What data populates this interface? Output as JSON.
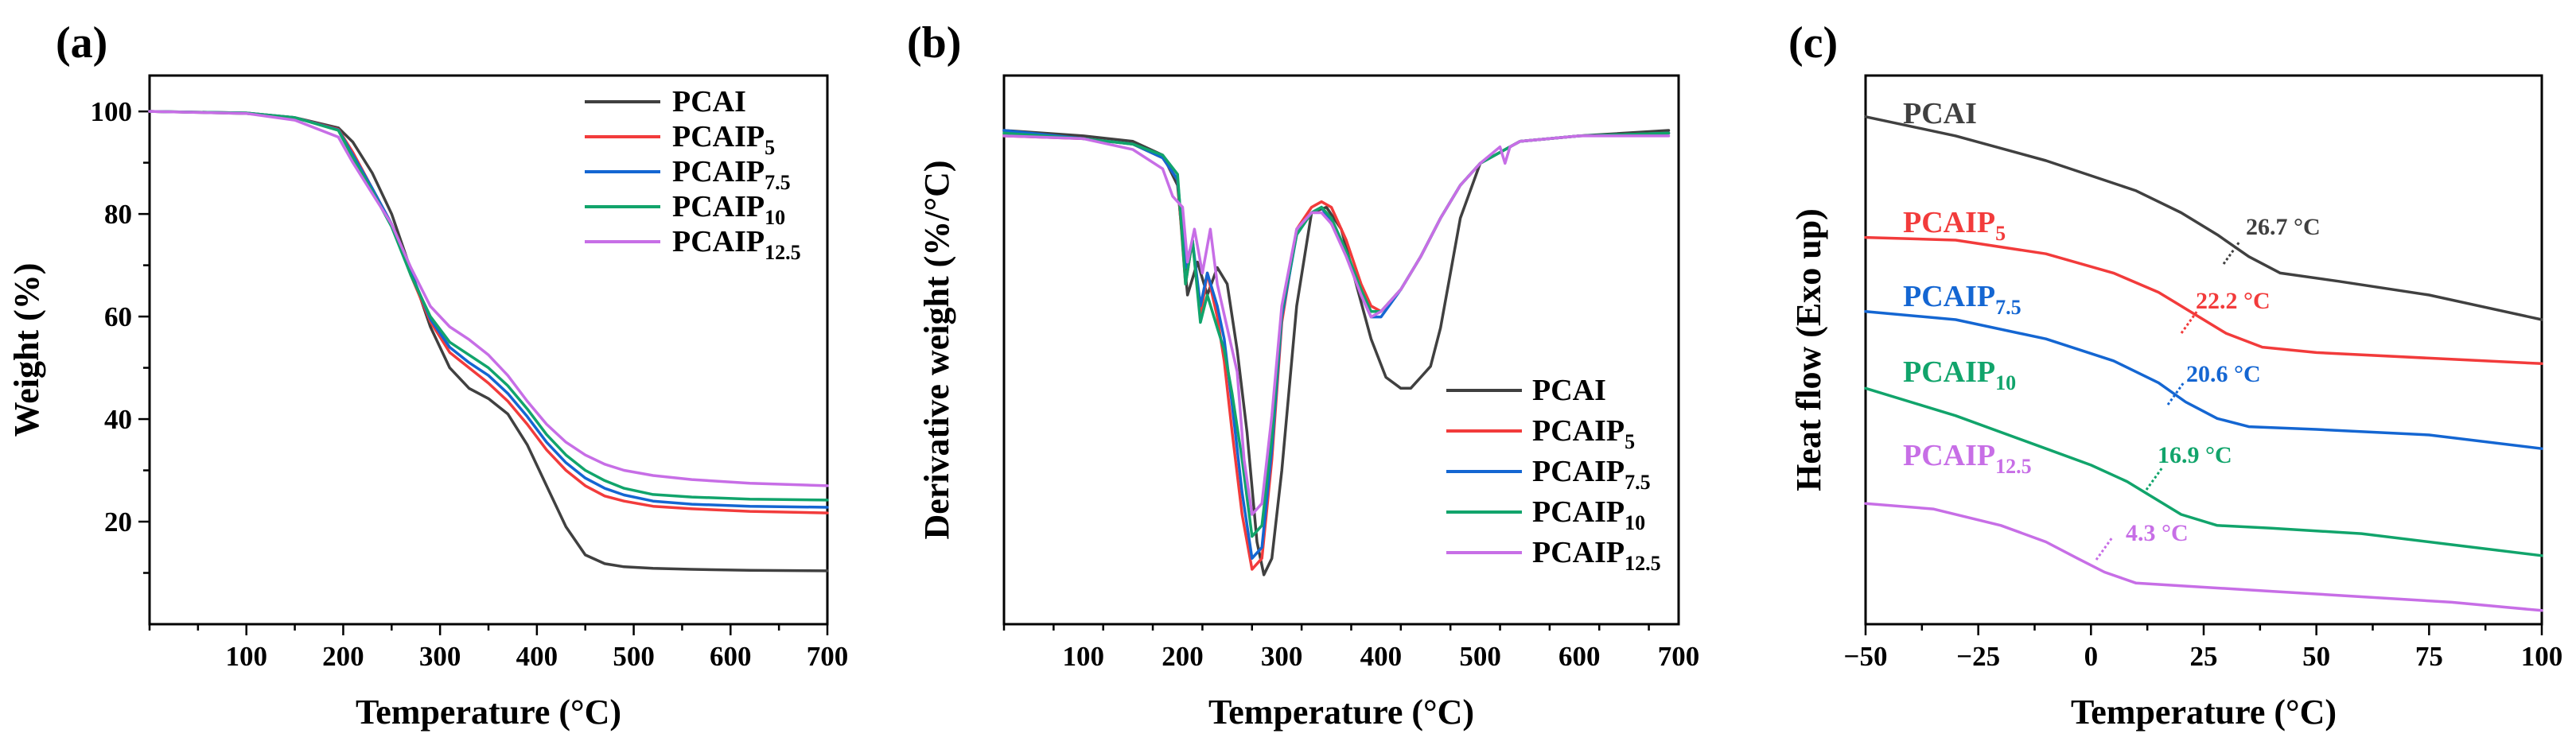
{
  "colors": {
    "PCAI": "#404040",
    "PCAIP5": "#f23b3b",
    "PCAIP7.5": "#1466d2",
    "PCAIP10": "#11a46b",
    "PCAIP12.5": "#c76ee6"
  },
  "chart_data": [
    {
      "type": "line",
      "title": "(a)",
      "xlabel": "Temperature (°C)",
      "ylabel": "Weight (%)",
      "xlim": [
        0,
        700
      ],
      "ylim": [
        0,
        107
      ],
      "xticks": [
        100,
        200,
        300,
        400,
        500,
        600,
        700
      ],
      "yticks": [
        20,
        40,
        60,
        80,
        100
      ],
      "grid": false,
      "legend_position": "top-right",
      "series": [
        {
          "name": "PCAI",
          "base": "PCAI",
          "subscript": "",
          "color": "#404040",
          "x": [
            0,
            100,
            150,
            195,
            210,
            230,
            250,
            270,
            290,
            310,
            330,
            350,
            370,
            390,
            410,
            430,
            450,
            470,
            490,
            520,
            560,
            620,
            700
          ],
          "y": [
            100,
            99.6,
            98.8,
            96.8,
            94,
            88,
            80,
            69,
            58,
            50,
            46,
            44,
            41,
            35,
            27,
            19,
            13.5,
            11.8,
            11.2,
            10.9,
            10.7,
            10.5,
            10.4
          ]
        },
        {
          "name": "PCAIP5",
          "base": "PCAIP",
          "subscript": "5",
          "color": "#f23b3b",
          "x": [
            0,
            100,
            150,
            195,
            210,
            230,
            250,
            270,
            290,
            310,
            330,
            350,
            370,
            390,
            410,
            430,
            450,
            470,
            490,
            520,
            560,
            620,
            700
          ],
          "y": [
            100,
            99.7,
            98.8,
            96.5,
            92,
            85,
            78,
            68,
            59,
            53,
            50,
            47,
            43.5,
            39,
            34,
            30,
            27,
            25,
            24,
            23,
            22.5,
            22,
            21.7
          ]
        },
        {
          "name": "PCAIP7.5",
          "base": "PCAIP",
          "subscript": "7.5",
          "color": "#1466d2",
          "x": [
            0,
            100,
            150,
            195,
            210,
            230,
            250,
            270,
            290,
            310,
            330,
            350,
            370,
            390,
            410,
            430,
            450,
            470,
            490,
            520,
            560,
            620,
            700
          ],
          "y": [
            100,
            99.7,
            98.8,
            96.4,
            91.5,
            85,
            78,
            68.5,
            59.5,
            54,
            51,
            48.5,
            45,
            40.5,
            35.5,
            31.5,
            28.5,
            26.5,
            25.2,
            24,
            23.4,
            23,
            22.8
          ]
        },
        {
          "name": "PCAIP10",
          "base": "PCAIP",
          "subscript": "10",
          "color": "#11a46b",
          "x": [
            0,
            100,
            150,
            195,
            210,
            230,
            250,
            270,
            290,
            310,
            330,
            350,
            370,
            390,
            410,
            430,
            450,
            470,
            490,
            520,
            560,
            620,
            700
          ],
          "y": [
            100,
            99.7,
            98.8,
            96.3,
            91,
            84.5,
            77.5,
            68,
            60,
            55,
            52.5,
            50,
            46.5,
            42,
            37,
            33,
            30,
            28,
            26.5,
            25.3,
            24.8,
            24.4,
            24.2
          ]
        },
        {
          "name": "PCAIP12.5",
          "base": "PCAIP",
          "subscript": "12.5",
          "color": "#c76ee6",
          "x": [
            0,
            100,
            150,
            195,
            210,
            230,
            250,
            270,
            290,
            310,
            330,
            350,
            370,
            390,
            410,
            430,
            450,
            470,
            490,
            520,
            560,
            620,
            700
          ],
          "y": [
            100,
            99.6,
            98.3,
            95,
            90,
            84,
            78,
            69.5,
            62,
            58,
            55.5,
            52.5,
            48.5,
            43.5,
            39,
            35.5,
            33,
            31.2,
            30,
            29,
            28.2,
            27.5,
            27
          ]
        }
      ]
    },
    {
      "type": "line",
      "title": "(b)",
      "xlabel": "Temperature (°C)",
      "ylabel": "Derivative weight (%/°C)",
      "xlim": [
        20,
        700
      ],
      "ylim": [
        0,
        100
      ],
      "xticks": [
        100,
        200,
        300,
        400,
        500,
        600,
        700
      ],
      "yticks": [],
      "grid": false,
      "legend_position": "bottom-right",
      "series": [
        {
          "name": "PCAI",
          "base": "PCAI",
          "subscript": "",
          "color": "#404040",
          "x": [
            20,
            100,
            150,
            180,
            195,
            205,
            215,
            225,
            235,
            245,
            255,
            265,
            275,
            282,
            290,
            300,
            315,
            330,
            345,
            360,
            375,
            390,
            405,
            420,
            430,
            440,
            450,
            460,
            470,
            480,
            500,
            540,
            600,
            690
          ],
          "y": [
            90,
            89,
            88,
            85.5,
            80,
            60,
            66,
            60,
            65,
            62,
            50,
            35,
            15,
            9,
            12,
            28,
            58,
            75,
            76,
            72,
            62,
            52,
            45,
            43,
            43,
            45,
            47,
            54,
            64,
            74,
            84,
            88,
            89,
            90
          ]
        },
        {
          "name": "PCAIP5",
          "base": "PCAIP",
          "subscript": "5",
          "color": "#f23b3b",
          "x": [
            20,
            100,
            150,
            180,
            195,
            203,
            210,
            218,
            225,
            235,
            242,
            250,
            260,
            270,
            280,
            290,
            300,
            315,
            330,
            340,
            350,
            365,
            380,
            390,
            400,
            420,
            440,
            460,
            480,
            500,
            540,
            600,
            690
          ],
          "y": [
            89,
            88.5,
            87.5,
            85,
            81,
            62,
            70,
            56,
            64,
            56,
            48,
            35,
            20,
            10,
            12,
            30,
            55,
            72,
            76,
            77,
            76,
            70,
            62,
            58,
            57,
            61,
            67,
            74,
            80,
            84,
            88,
            89,
            89.5
          ]
        },
        {
          "name": "PCAIP7.5",
          "base": "PCAIP",
          "subscript": "7.5",
          "color": "#1466d2",
          "x": [
            20,
            100,
            150,
            180,
            195,
            203,
            210,
            218,
            225,
            235,
            242,
            250,
            260,
            270,
            280,
            290,
            300,
            315,
            330,
            340,
            350,
            365,
            380,
            390,
            400,
            420,
            440,
            460,
            480,
            500,
            540,
            600,
            690
          ],
          "y": [
            90,
            88.5,
            87.5,
            85,
            81,
            65,
            70,
            58,
            64,
            58,
            52,
            40,
            24,
            12,
            14,
            32,
            56,
            71,
            75,
            76,
            73,
            68,
            60,
            56,
            56,
            61,
            67,
            74,
            80,
            84,
            88,
            89,
            89.5
          ]
        },
        {
          "name": "PCAIP10",
          "base": "PCAIP",
          "subscript": "10",
          "color": "#11a46b",
          "x": [
            20,
            100,
            150,
            180,
            195,
            203,
            210,
            218,
            225,
            235,
            242,
            250,
            260,
            270,
            280,
            290,
            300,
            315,
            330,
            340,
            350,
            365,
            380,
            390,
            400,
            420,
            440,
            460,
            480,
            500,
            540,
            600,
            690
          ],
          "y": [
            89.5,
            88.5,
            87.5,
            85.5,
            82,
            62,
            70,
            55,
            60,
            54,
            50,
            42,
            30,
            16,
            18,
            34,
            57,
            71,
            75,
            76,
            74,
            68,
            61,
            57,
            57,
            61,
            67,
            74,
            80,
            84,
            88,
            89,
            89.5
          ]
        },
        {
          "name": "PCAIP12.5",
          "base": "PCAIP",
          "subscript": "12.5",
          "color": "#c76ee6",
          "x": [
            20,
            100,
            150,
            180,
            190,
            200,
            205,
            212,
            220,
            228,
            235,
            245,
            255,
            262,
            270,
            280,
            290,
            300,
            315,
            330,
            340,
            350,
            365,
            380,
            390,
            400,
            420,
            440,
            460,
            480,
            500,
            520,
            525,
            530,
            540,
            600,
            690
          ],
          "y": [
            89,
            88.5,
            86.5,
            83,
            78,
            76,
            66,
            72,
            64,
            72,
            62,
            54,
            46,
            30,
            20,
            22,
            38,
            58,
            72,
            75,
            75,
            73,
            67,
            60,
            56,
            57,
            61,
            67,
            74,
            80,
            84,
            87,
            84,
            87,
            88,
            89,
            89
          ]
        }
      ]
    },
    {
      "type": "line",
      "title": "(c)",
      "xlabel": "Temperature (°C)",
      "ylabel": "Heat flow (Exo up)",
      "xlim": [
        -50,
        100
      ],
      "ylim": [
        0,
        100
      ],
      "xticks": [
        -50,
        -25,
        0,
        25,
        50,
        75,
        100
      ],
      "yticks": [],
      "grid": false,
      "series": [
        {
          "name": "PCAI",
          "color": "#404040",
          "x": [
            -50,
            -30,
            -10,
            10,
            20,
            28,
            35,
            42,
            55,
            75,
            100
          ],
          "y": [
            92.5,
            89,
            84.5,
            79,
            75,
            71,
            67,
            64,
            62.5,
            60,
            55.5
          ],
          "tg_label": "26.7 °C",
          "tg_x": 30
        },
        {
          "name": "PCAIP5",
          "color": "#f23b3b",
          "x": [
            -50,
            -30,
            -10,
            5,
            15,
            22,
            30,
            38,
            50,
            75,
            100
          ],
          "y": [
            70.5,
            70,
            67.5,
            64,
            60.5,
            57,
            53,
            50.5,
            49.5,
            48.5,
            47.5
          ],
          "tg_label": "22.2 °C",
          "tg_x": 22
        },
        {
          "name": "PCAIP7.5",
          "color": "#1466d2",
          "x": [
            -50,
            -30,
            -10,
            5,
            15,
            21,
            28,
            35,
            50,
            75,
            100
          ],
          "y": [
            57,
            55.5,
            52,
            48,
            44,
            40.5,
            37.5,
            36,
            35.5,
            34.5,
            32
          ]
        },
        {
          "name": "PCAIP10",
          "color": "#11a46b",
          "x": [
            -50,
            -30,
            -10,
            0,
            8,
            13,
            20,
            28,
            40,
            60,
            80,
            100
          ],
          "y": [
            43,
            38,
            32,
            29,
            26,
            23.5,
            20,
            18,
            17.5,
            16.5,
            14.5,
            12.5
          ]
        },
        {
          "name": "PCAIP12.5",
          "color": "#c76ee6",
          "x": [
            -50,
            -35,
            -20,
            -10,
            -3,
            3,
            10,
            20,
            40,
            60,
            80,
            100
          ],
          "y": [
            22,
            21,
            18,
            15,
            12,
            9.5,
            7.5,
            7,
            6,
            5,
            4,
            2.5
          ]
        }
      ],
      "labels": [
        {
          "series": "PCAI",
          "base": "PCAI",
          "subscript": "",
          "tg": "26.7 °C"
        },
        {
          "series": "PCAIP5",
          "base": "PCAIP",
          "subscript": "5",
          "tg": "22.2 °C"
        },
        {
          "series": "PCAIP7.5",
          "base": "PCAIP",
          "subscript": "7.5",
          "tg": "20.6 °C"
        },
        {
          "series": "PCAIP10",
          "base": "PCAIP",
          "subscript": "10",
          "tg": "16.9 °C"
        },
        {
          "series": "PCAIP12.5",
          "base": "PCAIP",
          "subscript": "12.5",
          "tg": "4.3 °C"
        }
      ]
    }
  ]
}
